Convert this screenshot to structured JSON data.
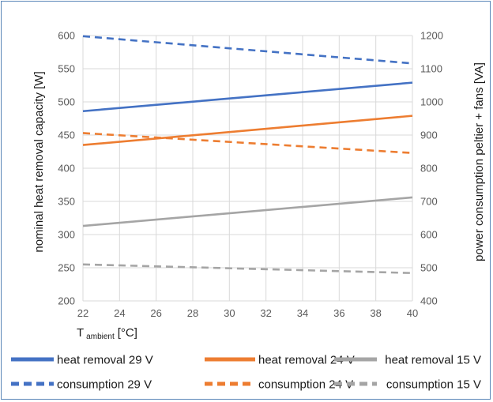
{
  "chart_data": {
    "type": "line",
    "x": [
      22,
      40
    ],
    "xticks": [
      22,
      24,
      26,
      28,
      30,
      32,
      34,
      36,
      38,
      40
    ],
    "xlabel_main": "T",
    "xlabel_sub": "ambient",
    "xlabel_unit": "[°C]",
    "ylabel": "nominal heat removal capacity [W]",
    "ylim": [
      200,
      600
    ],
    "yticks": [
      200,
      250,
      300,
      350,
      400,
      450,
      500,
      550,
      600
    ],
    "y2label": "power consumption peltier + fans [VA]",
    "y2lim": [
      400,
      1200
    ],
    "y2ticks": [
      400,
      500,
      600,
      700,
      800,
      900,
      1000,
      1100,
      1200
    ],
    "grid": true,
    "legend_position": "bottom",
    "series": [
      {
        "name": "heat removal 29 V",
        "axis": "left",
        "style": "solid",
        "color": "#4472c4",
        "values": [
          486,
          529
        ]
      },
      {
        "name": "heat removal 24 V",
        "axis": "left",
        "style": "solid",
        "color": "#ed7d31",
        "values": [
          435,
          479
        ]
      },
      {
        "name": "heat removal 15 V",
        "axis": "left",
        "style": "solid",
        "color": "#a5a5a5",
        "values": [
          313,
          356
        ]
      },
      {
        "name": "consumption 29 V",
        "axis": "right",
        "style": "dashed",
        "color": "#4472c4",
        "values": [
          1198,
          1116
        ]
      },
      {
        "name": "consumption 24 V",
        "axis": "right",
        "style": "dashed",
        "color": "#ed7d31",
        "values": [
          906,
          846
        ]
      },
      {
        "name": "consumption 15 V",
        "axis": "right",
        "style": "dashed",
        "color": "#a5a5a5",
        "values": [
          510,
          484
        ]
      }
    ]
  }
}
